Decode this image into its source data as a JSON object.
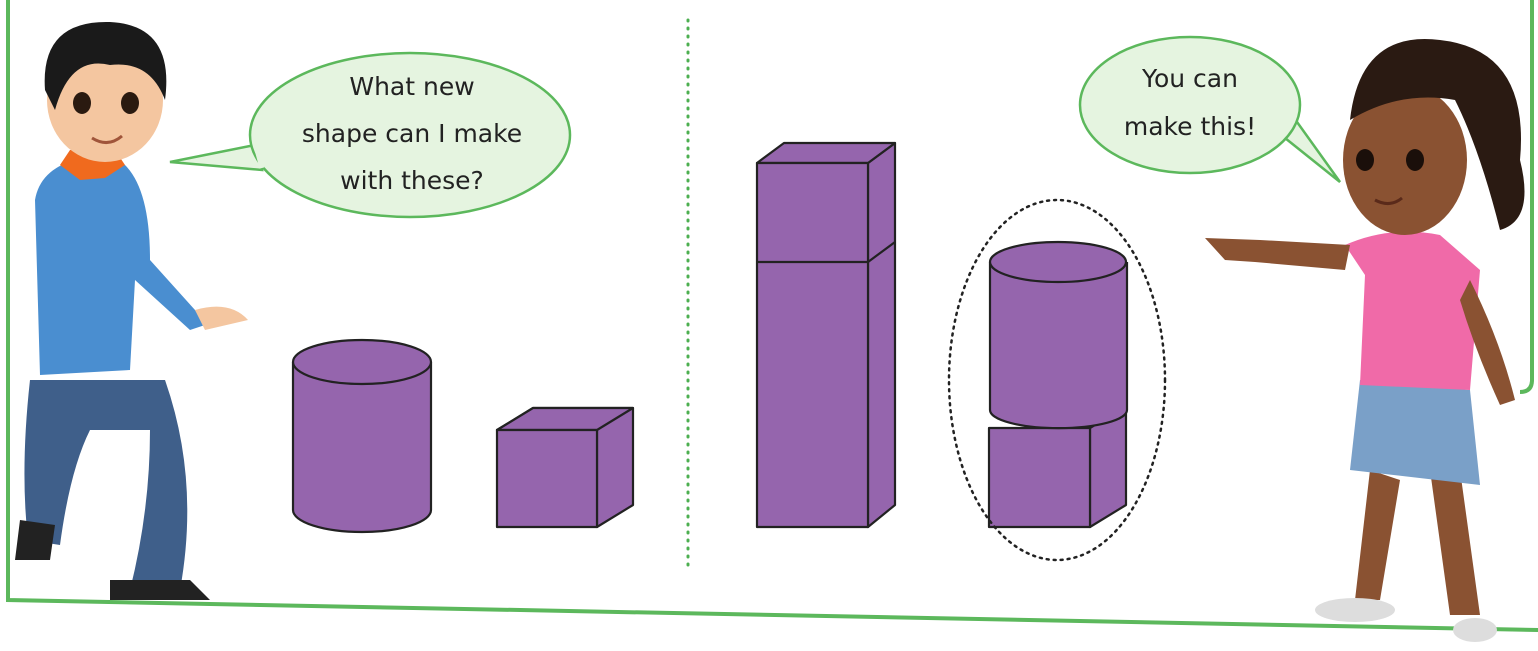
{
  "left_bubble": {
    "lines": [
      "What new",
      "shape can I make",
      "with these?"
    ]
  },
  "right_bubble": {
    "lines": [
      "You can",
      "make this!"
    ]
  }
}
